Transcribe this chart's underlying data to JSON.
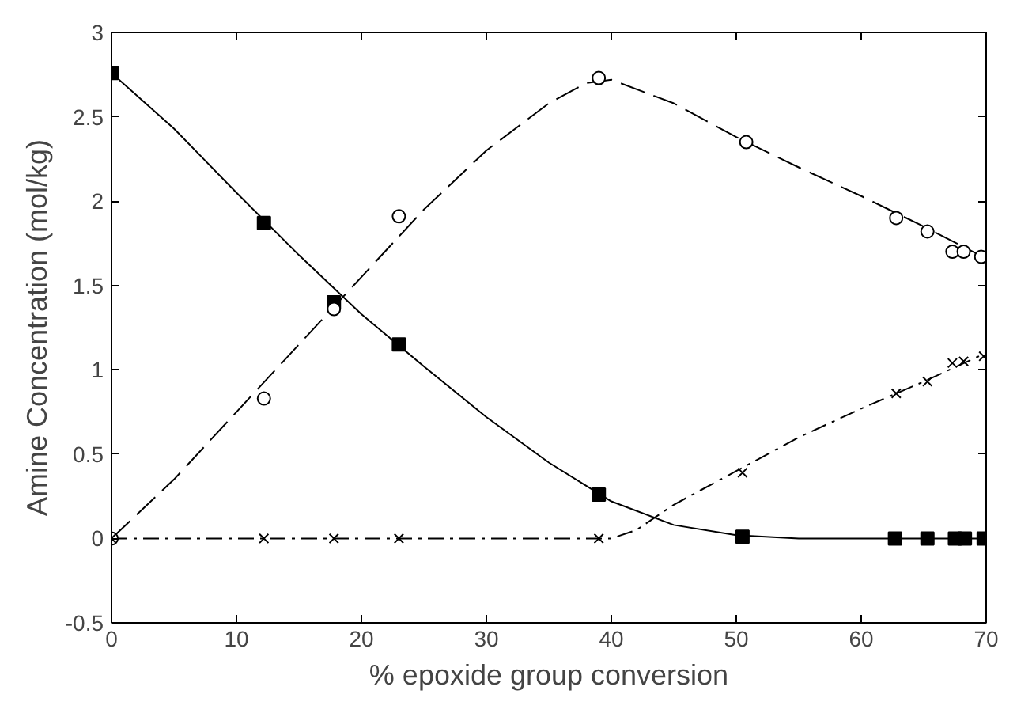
{
  "chart_data": {
    "type": "scatter",
    "xlabel": "% epoxide group conversion",
    "ylabel": "Amine Concentration (mol/kg)",
    "xlim": [
      0,
      70
    ],
    "ylim": [
      -0.5,
      3
    ],
    "xticks": [
      0,
      10,
      20,
      30,
      40,
      50,
      60,
      70
    ],
    "yticks": [
      {
        "value": -0.5,
        "label": "-0.5"
      },
      0,
      {
        "value": 0.5,
        "label": "0.5"
      },
      1,
      {
        "value": 1.5,
        "label": "1.5"
      },
      2,
      {
        "value": 2.5,
        "label": "2.5"
      },
      3
    ],
    "grid": false,
    "series": [
      {
        "marker": "square",
        "color": "#000000",
        "x": [
          0,
          12.2,
          17.8,
          23,
          39,
          50.5,
          62.7,
          65.3,
          67.5,
          68.3,
          69.8
        ],
        "values": [
          2.76,
          1.87,
          1.4,
          1.15,
          0.26,
          0.01,
          0,
          0,
          0,
          0,
          0
        ]
      },
      {
        "marker": "circle",
        "color": "#000000",
        "x": [
          0,
          12.2,
          17.8,
          23,
          39,
          50.8,
          62.8,
          65.3,
          67.3,
          68.2,
          69.6
        ],
        "values": [
          0,
          0.83,
          1.36,
          1.91,
          2.73,
          2.35,
          1.9,
          1.82,
          1.7,
          1.7,
          1.67
        ]
      },
      {
        "marker": "cross",
        "color": "#000000",
        "x": [
          0,
          12.2,
          17.8,
          23,
          39,
          50.5,
          62.8,
          65.3,
          67.3,
          68.2,
          69.8
        ],
        "values": [
          0,
          0,
          0,
          0,
          0,
          0.39,
          0.86,
          0.93,
          1.04,
          1.05,
          1.08
        ]
      },
      {
        "type": "line",
        "line_style": "solid",
        "color": "#000000",
        "x": [
          0,
          5,
          10,
          15,
          20,
          25,
          30,
          35,
          40,
          45,
          50,
          55,
          60,
          70
        ],
        "values": [
          2.76,
          2.43,
          2.05,
          1.68,
          1.33,
          1.02,
          0.72,
          0.45,
          0.22,
          0.08,
          0.02,
          0,
          0,
          0
        ]
      },
      {
        "type": "line",
        "line_style": "dashed",
        "color": "#000000",
        "x": [
          0,
          5,
          10,
          15,
          20,
          25,
          30,
          35,
          38,
          40,
          45,
          50,
          55,
          60,
          65,
          70
        ],
        "values": [
          0,
          0.35,
          0.75,
          1.15,
          1.55,
          1.95,
          2.3,
          2.58,
          2.7,
          2.72,
          2.58,
          2.38,
          2.2,
          2.03,
          1.85,
          1.66
        ]
      },
      {
        "type": "line",
        "line_style": "dashdot",
        "color": "#000000",
        "x": [
          0,
          40,
          42,
          45,
          50,
          55,
          60,
          65,
          70
        ],
        "values": [
          0,
          0,
          0.05,
          0.2,
          0.4,
          0.6,
          0.77,
          0.93,
          1.1
        ]
      }
    ]
  }
}
